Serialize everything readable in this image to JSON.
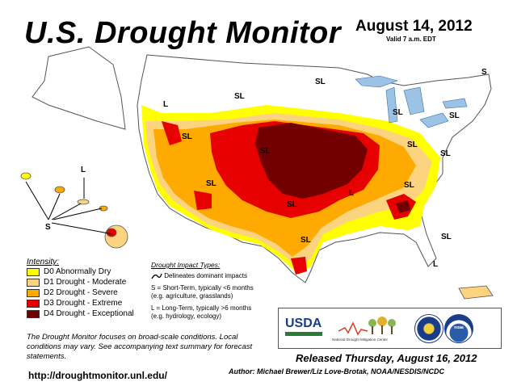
{
  "header": {
    "title": "U.S. Drought Monitor",
    "date": "August 14, 2012",
    "valid": "Valid 7 a.m. EDT"
  },
  "map": {
    "impact_labels": [
      "SL",
      "SL",
      "L",
      "SL",
      "SL",
      "SL",
      "SL",
      "SL",
      "SL",
      "SL",
      "SL",
      "SL",
      "S",
      "SL",
      "L",
      "L",
      "S",
      "L",
      "SL"
    ]
  },
  "legend": {
    "title": "Intensity:",
    "items": [
      {
        "label": "D0 Abnormally Dry",
        "color": "#ffff00"
      },
      {
        "label": "D1 Drought - Moderate",
        "color": "#fcd37f"
      },
      {
        "label": "D2 Drought - Severe",
        "color": "#ffaa00"
      },
      {
        "label": "D3 Drought - Extreme",
        "color": "#e60000"
      },
      {
        "label": "D4 Drought - Exceptional",
        "color": "#730000"
      }
    ]
  },
  "impact_types": {
    "title": "Drought Impact Types:",
    "delineates": "Delineates dominant impacts",
    "short_term": "S = Short-Term, typically <6 months",
    "short_term_examples": "(e.g. agriculture, grasslands)",
    "long_term": "L = Long-Term, typically >6 months",
    "long_term_examples": "(e.g. hydrology, ecology)"
  },
  "note": "The Drought Monitor focuses on broad-scale conditions. Local conditions may vary. See accompanying text summary for forecast statements.",
  "url": "http://droughtmonitor.unl.edu/",
  "released": "Released Thursday, August 16, 2012",
  "author": "Author: Michael Brewer/Liz Love-Brotak, NOAA/NESDIS/NCDC",
  "logos": {
    "usda": "USDA",
    "ndmc": "National Drought Mitigation Center",
    "noaa": "noaa"
  }
}
